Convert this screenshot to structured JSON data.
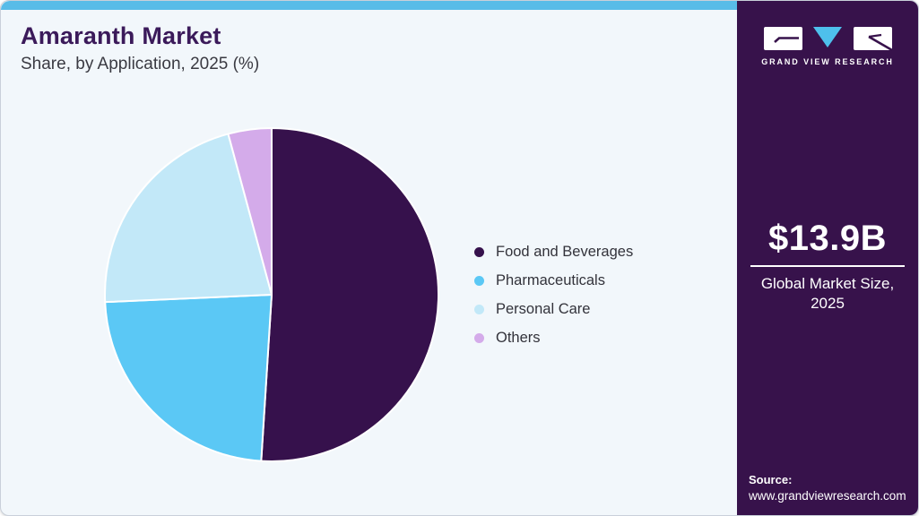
{
  "header": {
    "title": "Amaranth Market",
    "subtitle": "Share, by Application, 2025 (%)"
  },
  "chart_data": {
    "type": "pie",
    "title": "Amaranth Market Share, by Application, 2025 (%)",
    "categories": [
      "Food and Beverages",
      "Pharmaceuticals",
      "Personal Care",
      "Others"
    ],
    "values": [
      51.0,
      23.3,
      21.5,
      4.2
    ],
    "unit": "%",
    "colors": [
      "#36114C",
      "#5BC8F5",
      "#C2E8F8",
      "#D4ABEA"
    ],
    "start_angle_deg": 0,
    "direction": "clockwise",
    "legend_position": "right",
    "slice_gap_color": "#FFFFFF"
  },
  "sidebar": {
    "logo_wordmark": "GRAND VIEW RESEARCH",
    "market_size": {
      "value": "$13.9B",
      "label_line1": "Global Market Size,",
      "label_line2": "2025"
    },
    "source": {
      "label": "Source:",
      "url": "www.grandviewresearch.com"
    }
  },
  "colors": {
    "topbar": "#58BCE8",
    "card_background": "#F2F7FB",
    "sidebar_background": "#37124B",
    "title_text": "#3B1A5A",
    "logo_triangle": "#4EC0EC"
  }
}
